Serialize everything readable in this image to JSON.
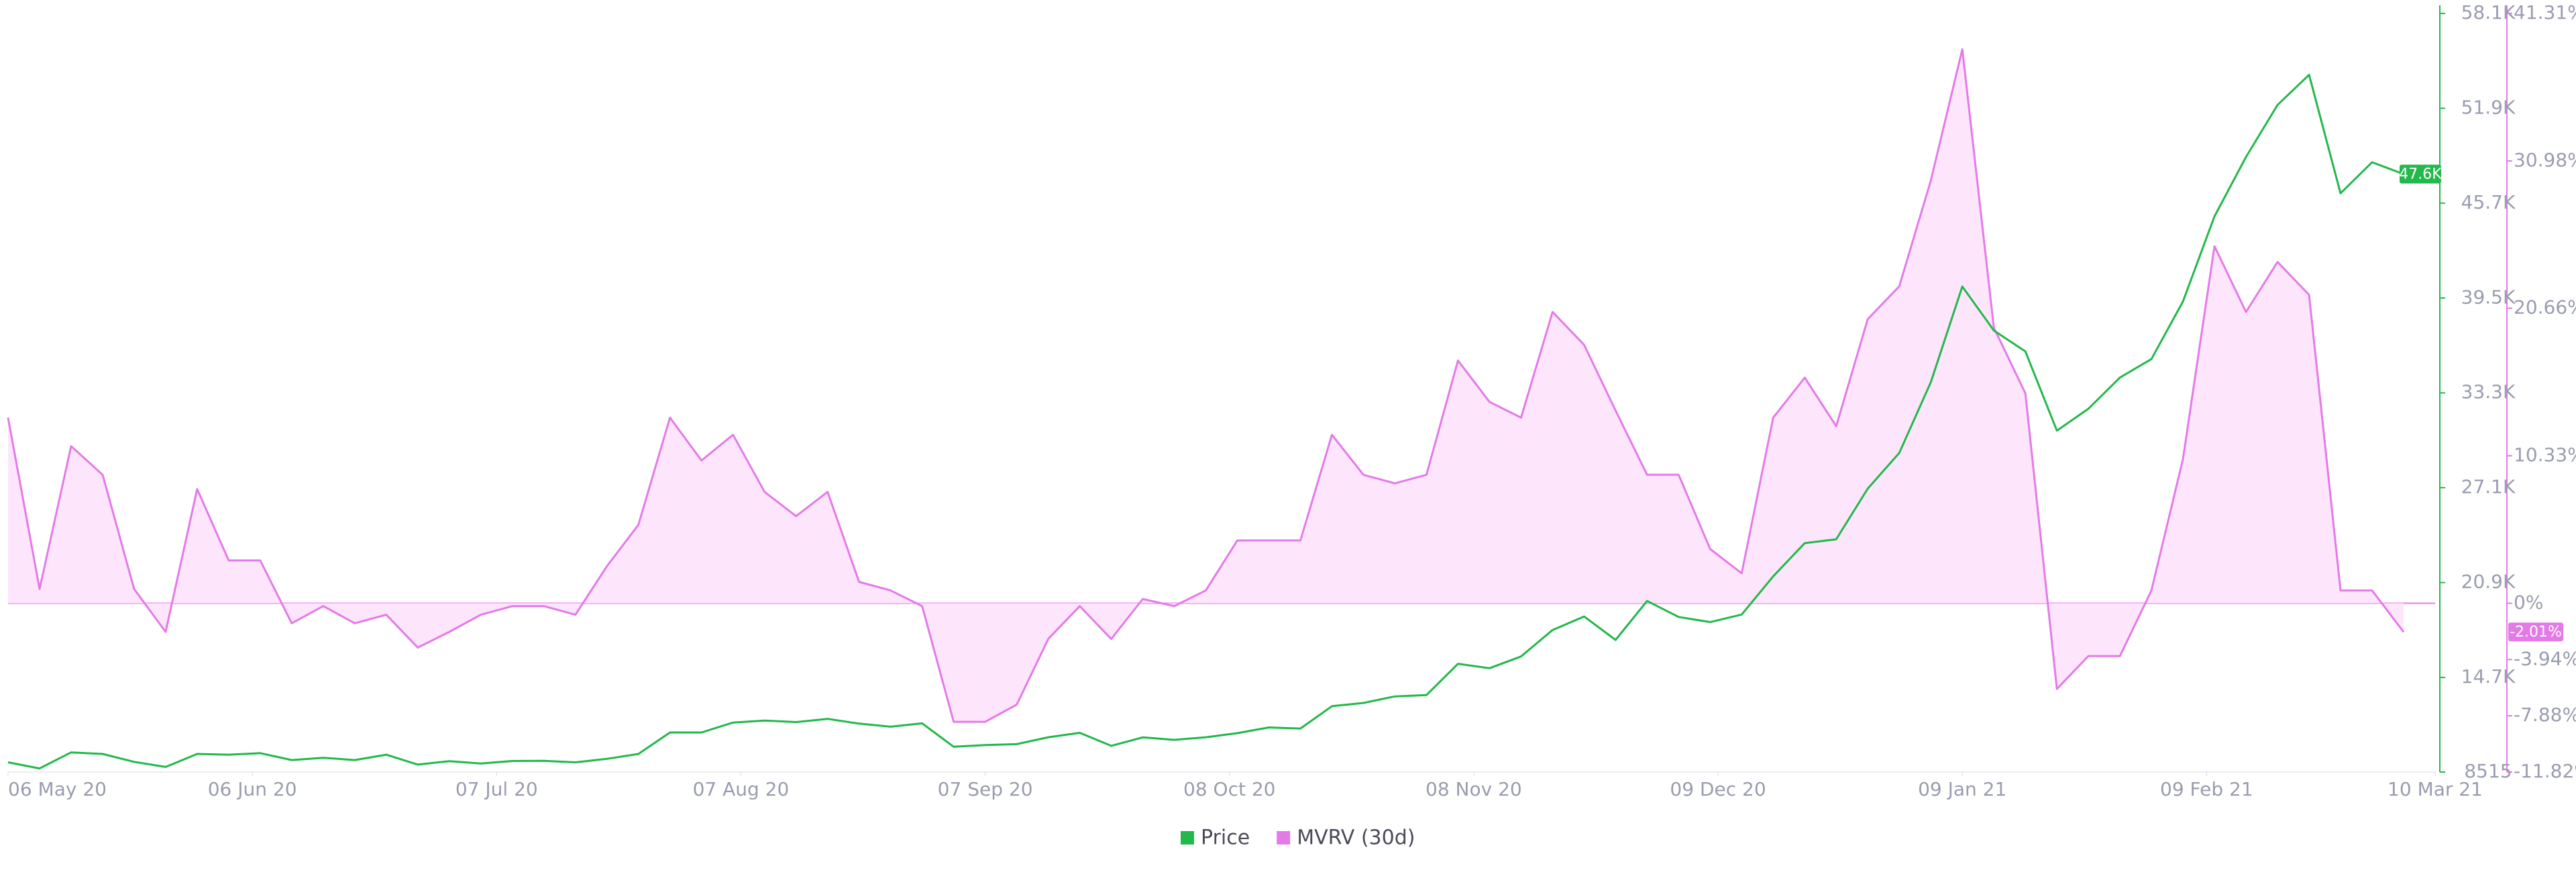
{
  "chart_data": {
    "type": "line",
    "x": [
      "2020-05-06",
      "2020-05-10",
      "2020-05-14",
      "2020-05-18",
      "2020-05-22",
      "2020-05-26",
      "2020-05-30",
      "2020-06-03",
      "2020-06-07",
      "2020-06-11",
      "2020-06-15",
      "2020-06-19",
      "2020-06-23",
      "2020-06-27",
      "2020-07-01",
      "2020-07-05",
      "2020-07-09",
      "2020-07-13",
      "2020-07-17",
      "2020-07-21",
      "2020-07-25",
      "2020-07-29",
      "2020-08-02",
      "2020-08-06",
      "2020-08-10",
      "2020-08-14",
      "2020-08-18",
      "2020-08-22",
      "2020-08-26",
      "2020-08-30",
      "2020-09-03",
      "2020-09-07",
      "2020-09-11",
      "2020-09-15",
      "2020-09-19",
      "2020-09-23",
      "2020-09-27",
      "2020-10-01",
      "2020-10-05",
      "2020-10-09",
      "2020-10-13",
      "2020-10-17",
      "2020-10-21",
      "2020-10-25",
      "2020-10-29",
      "2020-11-02",
      "2020-11-06",
      "2020-11-10",
      "2020-11-14",
      "2020-11-18",
      "2020-11-22",
      "2020-11-26",
      "2020-11-30",
      "2020-12-04",
      "2020-12-08",
      "2020-12-12",
      "2020-12-16",
      "2020-12-20",
      "2020-12-24",
      "2020-12-28",
      "2021-01-01",
      "2021-01-05",
      "2021-01-09",
      "2021-01-13",
      "2021-01-17",
      "2021-01-21",
      "2021-01-25",
      "2021-01-29",
      "2021-02-02",
      "2021-02-06",
      "2021-02-10",
      "2021-02-14",
      "2021-02-18",
      "2021-02-22",
      "2021-02-26",
      "2021-03-02",
      "2021-03-06"
    ],
    "series": [
      {
        "name": "Price",
        "color": "#22b84a",
        "axis": "y",
        "current_label": "47.6K",
        "values": [
          9150,
          8750,
          9800,
          9700,
          9180,
          8850,
          9700,
          9650,
          9750,
          9300,
          9450,
          9300,
          9650,
          9000,
          9230,
          9070,
          9240,
          9250,
          9150,
          9380,
          9700,
          11100,
          11100,
          11750,
          11880,
          11780,
          11990,
          11680,
          11480,
          11700,
          10170,
          10280,
          10340,
          10790,
          11080,
          10230,
          10780,
          10620,
          10790,
          11060,
          11430,
          11360,
          12820,
          13030,
          13460,
          13550,
          15590,
          15300,
          16070,
          17800,
          18680,
          17150,
          19700,
          18650,
          18320,
          18810,
          21310,
          23480,
          23730,
          27040,
          29370,
          33990,
          40250,
          37370,
          36010,
          30830,
          32260,
          34300,
          35510,
          39270,
          44840,
          48720,
          52120,
          54090,
          46340,
          48370,
          47600
        ]
      },
      {
        "name": "MVRV (30d)",
        "color": "#e47ae8",
        "fill": "#fde6fc",
        "axis": "y2",
        "current_label": "-2.01%",
        "values": [
          13,
          1,
          11,
          9,
          1,
          -2,
          8,
          3,
          3,
          -1.4,
          -0.2,
          -1.4,
          -0.8,
          -3.1,
          -2,
          -0.8,
          -0.2,
          -0.2,
          -0.8,
          2.6,
          5.5,
          13,
          10,
          11.8,
          7.8,
          6.1,
          7.8,
          1.5,
          0.9,
          -0.2,
          -8.3,
          -8.3,
          -7.1,
          -2.5,
          -0.2,
          -2.5,
          0.3,
          -0.2,
          0.9,
          4.4,
          4.4,
          4.4,
          11.8,
          9,
          8.4,
          9,
          17,
          14.1,
          13,
          20.4,
          18.1,
          13.5,
          9,
          9,
          3.8,
          2.1,
          13,
          15.8,
          12.4,
          19.9,
          22.2,
          29.6,
          38.8,
          19.3,
          14.7,
          -6,
          -3.7,
          -3.7,
          0.9,
          10.1,
          25,
          20.4,
          23.9,
          21.6,
          0.9,
          0.9,
          -2.01
        ]
      }
    ],
    "xlim": [
      "2020-05-06",
      "2021-03-10"
    ],
    "xticks": [
      {
        "value": "2020-05-06",
        "label": "06 May 20"
      },
      {
        "value": "2020-06-06",
        "label": "06 Jun 20"
      },
      {
        "value": "2020-07-07",
        "label": "07 Jul 20"
      },
      {
        "value": "2020-08-07",
        "label": "07 Aug 20"
      },
      {
        "value": "2020-09-07",
        "label": "07 Sep 20"
      },
      {
        "value": "2020-10-08",
        "label": "08 Oct 20"
      },
      {
        "value": "2020-11-08",
        "label": "08 Nov 20"
      },
      {
        "value": "2020-12-09",
        "label": "09 Dec 20"
      },
      {
        "value": "2021-01-09",
        "label": "09 Jan 21"
      },
      {
        "value": "2021-02-09",
        "label": "09 Feb 21"
      },
      {
        "value": "2021-03-10",
        "label": "10 Mar 21"
      }
    ],
    "ylim": [
      8515,
      58100
    ],
    "yticks": [
      8515,
      {
        "value": 14700,
        "label": "14.7K"
      },
      {
        "value": 20900,
        "label": "20.9K"
      },
      {
        "value": 27100,
        "label": "27.1K"
      },
      {
        "value": 33300,
        "label": "33.3K"
      },
      {
        "value": 39500,
        "label": "39.5K"
      },
      {
        "value": 45700,
        "label": "45.7K"
      },
      {
        "value": 51900,
        "label": "51.9K"
      },
      {
        "value": 58100,
        "label": "58.1K"
      }
    ],
    "y2lim": [
      -11.82,
      41.31
    ],
    "y2ticks": [
      {
        "value": -11.82,
        "label": "-11.82%"
      },
      {
        "value": -7.88,
        "label": "-7.88%"
      },
      {
        "value": -3.94,
        "label": "-3.94%"
      },
      {
        "value": 0,
        "label": "0%"
      },
      {
        "value": 10.33,
        "label": "10.33%"
      },
      {
        "value": 20.66,
        "label": "20.66%"
      },
      {
        "value": 30.98,
        "label": "30.98%"
      },
      {
        "value": 41.31,
        "label": "41.31%"
      }
    ]
  }
}
